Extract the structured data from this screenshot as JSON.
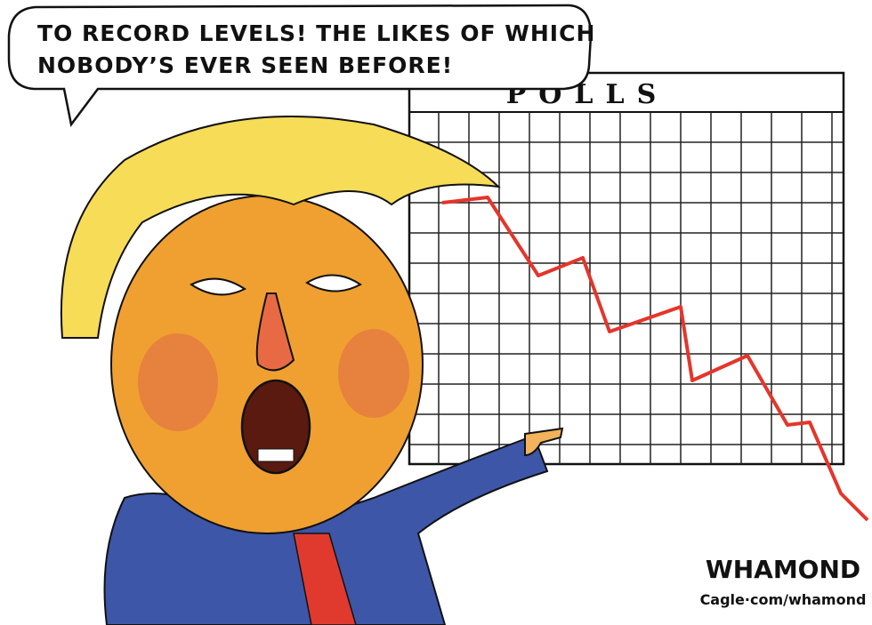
{
  "speech_bubble": {
    "lines": [
      "TO RECORD LEVELS! THE LIKES OF WHICH",
      "NOBODY’S EVER SEEN BEFORE!"
    ]
  },
  "chart_sign": {
    "title": "POLLS"
  },
  "signature": {
    "name": "WHAMOND",
    "credit": "Cagle·com/whamond"
  }
}
